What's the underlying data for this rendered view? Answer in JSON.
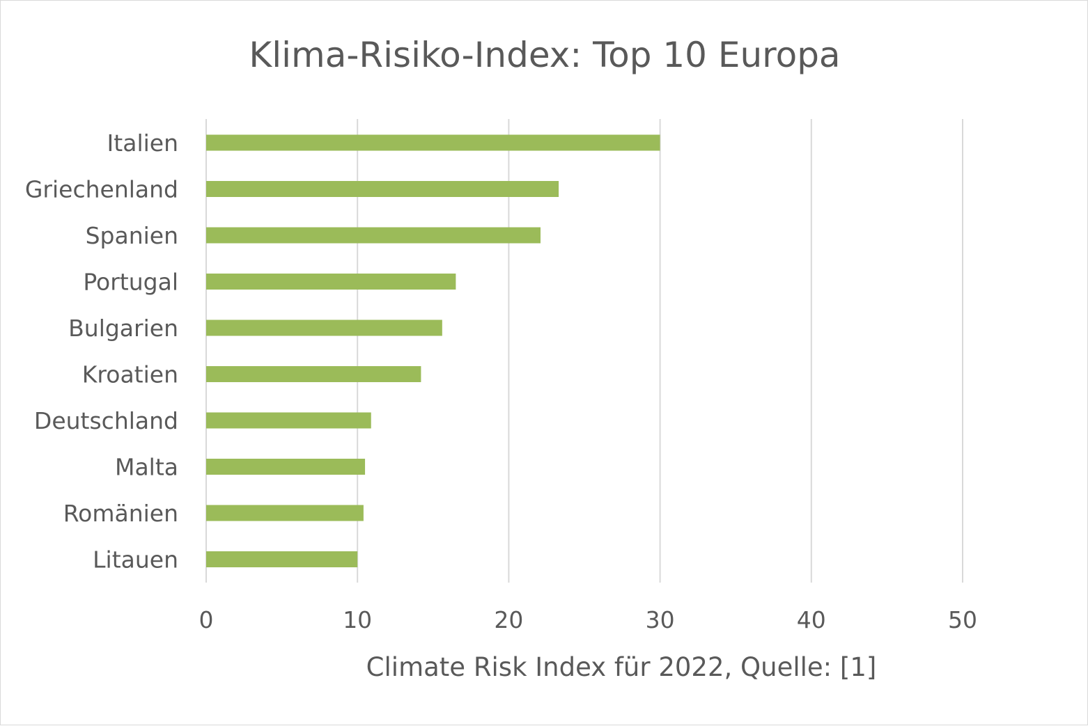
{
  "chart_data": {
    "type": "bar",
    "orientation": "horizontal",
    "title": "Klima-Risiko-Index: Top 10 Europa",
    "xlabel": "Climate Risk Index für 2022, Quelle: [1]",
    "ylabel": "",
    "categories": [
      "Italien",
      "Griechenland",
      "Spanien",
      "Portugal",
      "Bulgarien",
      "Kroatien",
      "Deutschland",
      "Malta",
      "Romänien",
      "Litauen"
    ],
    "values": [
      30.0,
      23.3,
      22.1,
      16.5,
      15.6,
      14.2,
      10.9,
      10.5,
      10.4,
      10.0
    ],
    "xlim": [
      0,
      50
    ],
    "xticks": [
      "0",
      "10",
      "20",
      "30",
      "40",
      "50"
    ],
    "grid": "vertical",
    "bar_color": "#9bbb59",
    "grid_color": "#d9d9d9",
    "text_color": "#595959"
  }
}
